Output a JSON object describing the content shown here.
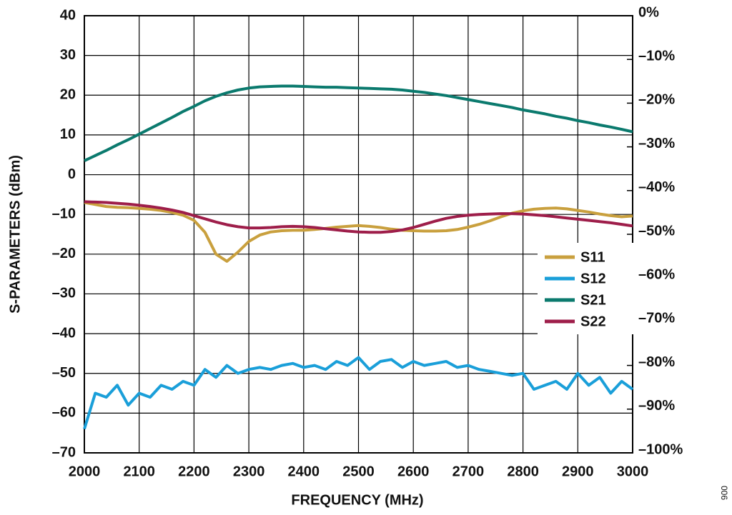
{
  "chart_data": {
    "type": "line",
    "xlabel": "FREQUENCY (MHz)",
    "ylabel": "S-PARAMETERS (dBm)",
    "figure_id": "006",
    "x": [
      2000,
      2020,
      2040,
      2060,
      2080,
      2100,
      2120,
      2140,
      2160,
      2180,
      2200,
      2220,
      2240,
      2260,
      2280,
      2300,
      2320,
      2340,
      2360,
      2380,
      2400,
      2420,
      2440,
      2460,
      2480,
      2500,
      2520,
      2540,
      2560,
      2580,
      2600,
      2620,
      2640,
      2660,
      2680,
      2700,
      2720,
      2740,
      2760,
      2780,
      2800,
      2820,
      2840,
      2860,
      2880,
      2900,
      2920,
      2940,
      2960,
      2980,
      3000
    ],
    "series": [
      {
        "name": "S11",
        "color": "#c9a03e",
        "values": [
          -7,
          -7.5,
          -8,
          -8.2,
          -8.3,
          -8.5,
          -8.7,
          -9,
          -9.5,
          -10.2,
          -11.5,
          -14.5,
          -20,
          -21.8,
          -19.5,
          -16.8,
          -15.2,
          -14.4,
          -14.1,
          -14,
          -14,
          -13.8,
          -13.5,
          -13.2,
          -13,
          -12.8,
          -13,
          -13.3,
          -13.7,
          -14,
          -14.1,
          -14.2,
          -14.2,
          -14.1,
          -13.8,
          -13.2,
          -12.5,
          -11.6,
          -10.6,
          -9.7,
          -9.1,
          -8.7,
          -8.5,
          -8.4,
          -8.6,
          -9,
          -9.4,
          -9.9,
          -10.3,
          -10.6,
          -10.4
        ]
      },
      {
        "name": "S12",
        "color": "#1a9fd9",
        "values": [
          -64,
          -55,
          -56,
          -53,
          -58,
          -55,
          -56,
          -53,
          -54,
          -52,
          -53,
          -49,
          -51,
          -48,
          -50,
          -49,
          -48.5,
          -49,
          -48,
          -47.5,
          -48.5,
          -48,
          -49,
          -47,
          -48,
          -46,
          -49,
          -47,
          -46.5,
          -48.5,
          -47,
          -48,
          -47.5,
          -47,
          -48.5,
          -48,
          -49,
          -49.5,
          -50,
          -50.5,
          -50,
          -54,
          -53,
          -52,
          -54,
          -50,
          -53,
          -51,
          -55,
          -52,
          -54
        ]
      },
      {
        "name": "S21",
        "color": "#0b7a6e",
        "values": [
          3.5,
          4.8,
          6.1,
          7.5,
          8.8,
          10.2,
          11.6,
          13,
          14.4,
          15.9,
          17.2,
          18.6,
          19.7,
          20.6,
          21.3,
          21.8,
          22.1,
          22.2,
          22.3,
          22.3,
          22.2,
          22.1,
          22,
          22,
          21.9,
          21.8,
          21.7,
          21.6,
          21.5,
          21.3,
          21,
          20.7,
          20.3,
          19.9,
          19.4,
          18.9,
          18.4,
          17.9,
          17.4,
          16.9,
          16.3,
          15.8,
          15.3,
          14.7,
          14.2,
          13.6,
          13.1,
          12.5,
          12,
          11.4,
          10.8
        ]
      },
      {
        "name": "S22",
        "color": "#9e1e4a",
        "values": [
          -6.8,
          -6.9,
          -7,
          -7.2,
          -7.4,
          -7.7,
          -8,
          -8.4,
          -8.9,
          -9.5,
          -10.3,
          -11.1,
          -11.9,
          -12.6,
          -13.1,
          -13.4,
          -13.4,
          -13.3,
          -13.1,
          -13,
          -13.1,
          -13.3,
          -13.6,
          -13.9,
          -14.2,
          -14.4,
          -14.5,
          -14.5,
          -14.3,
          -13.9,
          -13.3,
          -12.5,
          -11.7,
          -11,
          -10.5,
          -10.2,
          -10,
          -9.9,
          -9.8,
          -9.8,
          -9.9,
          -10.1,
          -10.3,
          -10.6,
          -10.9,
          -11.2,
          -11.5,
          -11.8,
          -12.1,
          -12.5,
          -12.9
        ]
      }
    ],
    "xlim": [
      2000,
      3000
    ],
    "xticks": [
      2000,
      2100,
      2200,
      2300,
      2400,
      2500,
      2600,
      2700,
      2800,
      2900,
      3000
    ],
    "ylim": [
      -70,
      40
    ],
    "yticks": [
      {
        "value": -70,
        "label": "–70"
      },
      {
        "value": -60,
        "label": "–60"
      },
      {
        "value": -50,
        "label": "–50"
      },
      {
        "value": -40,
        "label": "–40"
      },
      {
        "value": -30,
        "label": "–30"
      },
      {
        "value": -20,
        "label": "–20"
      },
      {
        "value": -10,
        "label": "–10"
      },
      0,
      10,
      20,
      30,
      40
    ],
    "y2lim": [
      -100,
      0
    ],
    "y2ticks": [
      {
        "value": -100,
        "label": "–100%"
      },
      {
        "value": -90,
        "label": "–90%"
      },
      {
        "value": -80,
        "label": "–80%"
      },
      {
        "value": -70,
        "label": "–70%"
      },
      {
        "value": -60,
        "label": "–60%"
      },
      {
        "value": -50,
        "label": "–50%"
      },
      {
        "value": -40,
        "label": "–40%"
      },
      {
        "value": -30,
        "label": "–30%"
      },
      {
        "value": -20,
        "label": "–20%"
      },
      {
        "value": -10,
        "label": "–10%"
      },
      {
        "value": 0,
        "label": "0%"
      }
    ],
    "grid": true,
    "legend": "lower right"
  }
}
